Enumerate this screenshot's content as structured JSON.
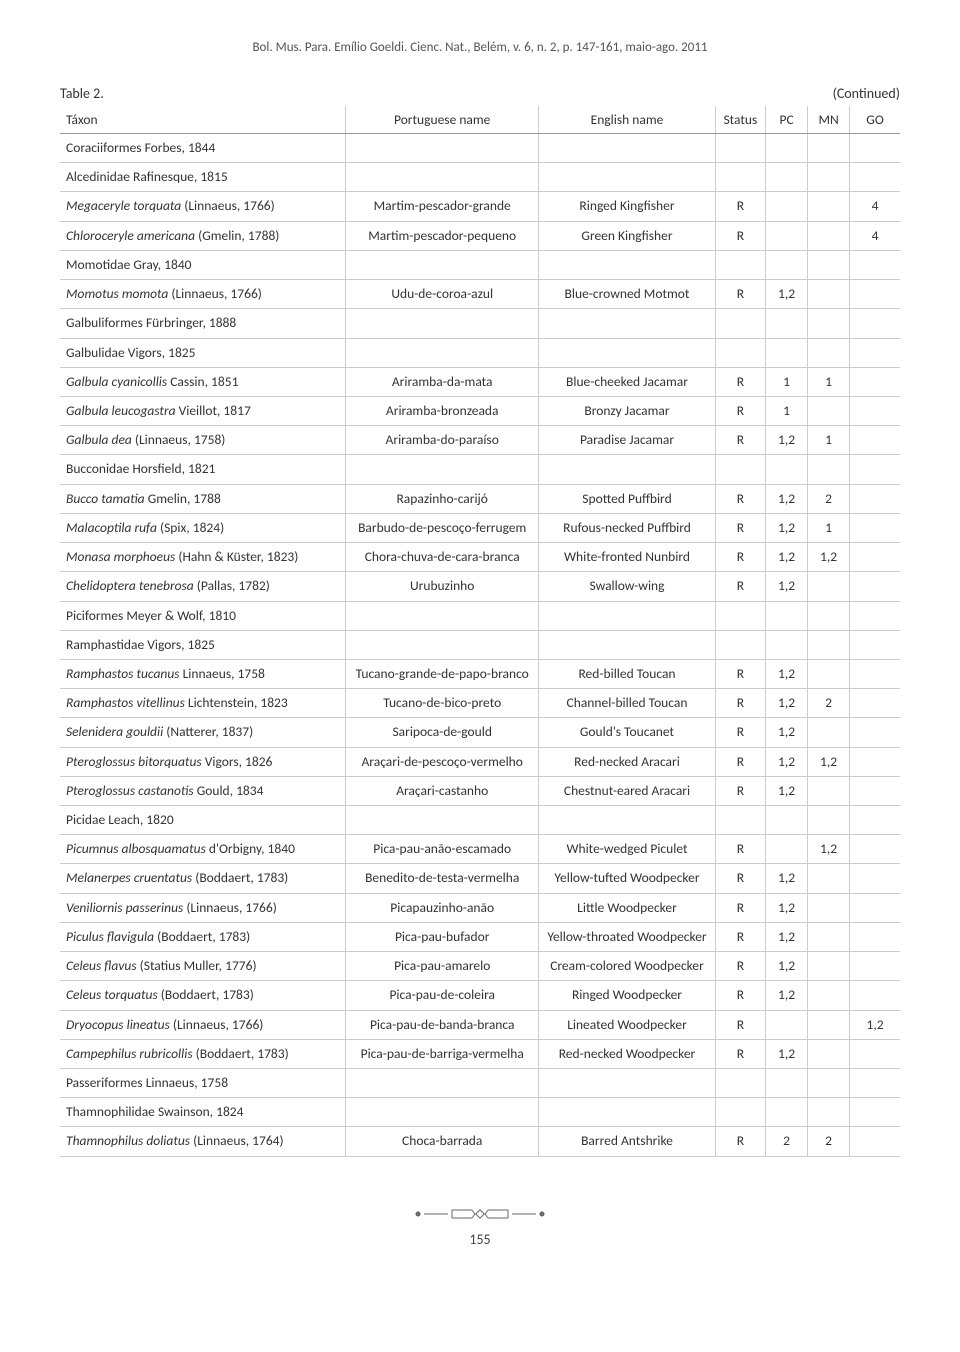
{
  "header_cite": "Bol. Mus. Para. Emílio Goeldi. Cienc. Nat., Belém, v. 6, n. 2, p. 147-161, maio-ago. 2011",
  "table_label": "Table 2.",
  "continued": "(Continued)",
  "columns": [
    "Táxon",
    "Portuguese name",
    "English name",
    "Status",
    "PC",
    "MN",
    "GO"
  ],
  "rows": [
    {
      "t": "Coraciiformes Forbes, 1844",
      "pt": "",
      "en": "",
      "s": "",
      "pc": "",
      "mn": "",
      "go": ""
    },
    {
      "t": "Alcedinidae Rafinesque, 1815",
      "pt": "",
      "en": "",
      "s": "",
      "pc": "",
      "mn": "",
      "go": ""
    },
    {
      "it": "Megaceryle torquata",
      "au": " (Linnaeus, 1766)",
      "pt": "Martim-pescador-grande",
      "en": "Ringed Kingfisher",
      "s": "R",
      "pc": "",
      "mn": "",
      "go": "4"
    },
    {
      "it": "Chloroceryle americana",
      "au": " (Gmelin, 1788)",
      "pt": "Martim-pescador-pequeno",
      "en": "Green Kingfisher",
      "s": "R",
      "pc": "",
      "mn": "",
      "go": "4"
    },
    {
      "t": "Momotidae Gray, 1840",
      "pt": "",
      "en": "",
      "s": "",
      "pc": "",
      "mn": "",
      "go": ""
    },
    {
      "it": "Momotus momota",
      "au": " (Linnaeus, 1766)",
      "pt": "Udu-de-coroa-azul",
      "en": "Blue-crowned Motmot",
      "s": "R",
      "pc": "1,2",
      "mn": "",
      "go": ""
    },
    {
      "t": "Galbuliformes Fürbringer, 1888",
      "pt": "",
      "en": "",
      "s": "",
      "pc": "",
      "mn": "",
      "go": ""
    },
    {
      "t": "Galbulidae Vigors, 1825",
      "pt": "",
      "en": "",
      "s": "",
      "pc": "",
      "mn": "",
      "go": ""
    },
    {
      "it": "Galbula cyanicollis",
      "au": " Cassin, 1851",
      "pt": "Ariramba-da-mata",
      "en": "Blue-cheeked Jacamar",
      "s": "R",
      "pc": "1",
      "mn": "1",
      "go": ""
    },
    {
      "it": "Galbula leucogastra",
      "au": " Vieillot, 1817",
      "pt": "Ariramba-bronzeada",
      "en": "Bronzy Jacamar",
      "s": "R",
      "pc": "1",
      "mn": "",
      "go": ""
    },
    {
      "it": "Galbula dea",
      "au": " (Linnaeus, 1758)",
      "pt": "Ariramba-do-paraíso",
      "en": "Paradise Jacamar",
      "s": "R",
      "pc": "1,2",
      "mn": "1",
      "go": ""
    },
    {
      "t": "Bucconidae Horsfield, 1821",
      "pt": "",
      "en": "",
      "s": "",
      "pc": "",
      "mn": "",
      "go": ""
    },
    {
      "it": "Bucco tamatia",
      "au": " Gmelin, 1788",
      "pt": "Rapazinho-carijó",
      "en": "Spotted Puffbird",
      "s": "R",
      "pc": "1,2",
      "mn": "2",
      "go": ""
    },
    {
      "it": "Malacoptila rufa",
      "au": " (Spix, 1824)",
      "pt": "Barbudo-de-pescoço-ferrugem",
      "en": "Rufous-necked Puffbird",
      "s": "R",
      "pc": "1,2",
      "mn": "1",
      "go": ""
    },
    {
      "it": "Monasa morphoeus",
      "au": " (Hahn & Küster, 1823)",
      "pt": "Chora-chuva-de-cara-branca",
      "en": "White-fronted Nunbird",
      "s": "R",
      "pc": "1,2",
      "mn": "1,2",
      "go": ""
    },
    {
      "it": "Chelidoptera tenebrosa",
      "au": " (Pallas, 1782)",
      "pt": "Urubuzinho",
      "en": "Swallow-wing",
      "s": "R",
      "pc": "1,2",
      "mn": "",
      "go": ""
    },
    {
      "t": "Piciformes Meyer & Wolf, 1810",
      "pt": "",
      "en": "",
      "s": "",
      "pc": "",
      "mn": "",
      "go": ""
    },
    {
      "t": "Ramphastidae Vigors, 1825",
      "pt": "",
      "en": "",
      "s": "",
      "pc": "",
      "mn": "",
      "go": ""
    },
    {
      "it": "Ramphastos tucanus",
      "au": " Linnaeus, 1758",
      "pt": "Tucano-grande-de-papo-branco",
      "en": "Red-billed Toucan",
      "s": "R",
      "pc": "1,2",
      "mn": "",
      "go": ""
    },
    {
      "it": "Ramphastos vitellinus",
      "au": " Lichtenstein, 1823",
      "pt": "Tucano-de-bico-preto",
      "en": "Channel-billed Toucan",
      "s": "R",
      "pc": "1,2",
      "mn": "2",
      "go": ""
    },
    {
      "it": "Selenidera gouldii",
      "au": " (Natterer, 1837)",
      "pt": "Saripoca-de-gould",
      "en": "Gould's Toucanet",
      "s": "R",
      "pc": "1,2",
      "mn": "",
      "go": ""
    },
    {
      "it": "Pteroglossus bitorquatus",
      "au": " Vigors, 1826",
      "pt": "Araçari-de-pescoço-vermelho",
      "en": "Red-necked Aracari",
      "s": "R",
      "pc": "1,2",
      "mn": "1,2",
      "go": ""
    },
    {
      "it": "Pteroglossus castanotis",
      "au": " Gould, 1834",
      "pt": "Araçari-castanho",
      "en": "Chestnut-eared Aracari",
      "s": "R",
      "pc": "1,2",
      "mn": "",
      "go": ""
    },
    {
      "t": "Picidae Leach, 1820",
      "pt": "",
      "en": "",
      "s": "",
      "pc": "",
      "mn": "",
      "go": ""
    },
    {
      "it": "Picumnus albosquamatus",
      "au": " d'Orbigny, 1840",
      "pt": "Pica-pau-anão-escamado",
      "en": "White-wedged Piculet",
      "s": "R",
      "pc": "",
      "mn": "1,2",
      "go": ""
    },
    {
      "it": "Melanerpes cruentatus",
      "au": " (Boddaert, 1783)",
      "pt": "Benedito-de-testa-vermelha",
      "en": "Yellow-tufted Woodpecker",
      "s": "R",
      "pc": "1,2",
      "mn": "",
      "go": ""
    },
    {
      "it": "Veniliornis passerinus",
      "au": " (Linnaeus, 1766)",
      "pt": "Picapauzinho-anão",
      "en": "Little Woodpecker",
      "s": "R",
      "pc": "1,2",
      "mn": "",
      "go": ""
    },
    {
      "it": "Piculus flavigula",
      "au": " (Boddaert, 1783)",
      "pt": "Pica-pau-bufador",
      "en": "Yellow-throated Woodpecker",
      "s": "R",
      "pc": "1,2",
      "mn": "",
      "go": ""
    },
    {
      "it": "Celeus flavus",
      "au": " (Statius Muller, 1776)",
      "pt": "Pica-pau-amarelo",
      "en": "Cream-colored Woodpecker",
      "s": "R",
      "pc": "1,2",
      "mn": "",
      "go": ""
    },
    {
      "it": "Celeus torquatus",
      "au": " (Boddaert, 1783)",
      "pt": "Pica-pau-de-coleira",
      "en": "Ringed Woodpecker",
      "s": "R",
      "pc": "1,2",
      "mn": "",
      "go": ""
    },
    {
      "it": "Dryocopus lineatus",
      "au": " (Linnaeus, 1766)",
      "pt": "Pica-pau-de-banda-branca",
      "en": "Lineated Woodpecker",
      "s": "R",
      "pc": "",
      "mn": "",
      "go": "1,2"
    },
    {
      "it": "Campephilus rubricollis",
      "au": " (Boddaert, 1783)",
      "pt": "Pica-pau-de-barriga-vermelha",
      "en": "Red-necked Woodpecker",
      "s": "R",
      "pc": "1,2",
      "mn": "",
      "go": ""
    },
    {
      "t": "Passeriformes Linnaeus, 1758",
      "pt": "",
      "en": "",
      "s": "",
      "pc": "",
      "mn": "",
      "go": ""
    },
    {
      "t": "Thamnophilidae Swainson, 1824",
      "pt": "",
      "en": "",
      "s": "",
      "pc": "",
      "mn": "",
      "go": ""
    },
    {
      "it": "Thamnophilus doliatus",
      "au": " (Linnaeus, 1764)",
      "pt": "Choca-barrada",
      "en": "Barred Antshrike",
      "s": "R",
      "pc": "2",
      "mn": "2",
      "go": ""
    }
  ],
  "page_number": "155",
  "ornament": "◆ ━◆━ ◆",
  "styles": {
    "grid_color": "#cccccc",
    "header_border": "#999999",
    "text_color": "#333333",
    "background": "#ffffff",
    "font_size_body": 13.5,
    "font_size_header": 13,
    "col_widths_pct": [
      34,
      23,
      21,
      6,
      5,
      5,
      6
    ]
  }
}
